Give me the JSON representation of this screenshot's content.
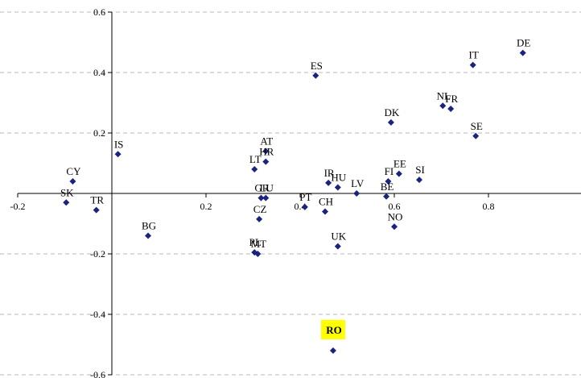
{
  "chart_data": {
    "type": "scatter",
    "title": "",
    "xlabel": "",
    "ylabel": "",
    "xlim": [
      -0.2,
      1.0
    ],
    "ylim": [
      -0.6,
      0.6
    ],
    "x_ticks": [
      "-0.2",
      "0.2",
      "0.4",
      "0.6",
      "0.8"
    ],
    "y_ticks": [
      "-0.6",
      "-0.4",
      "-0.2",
      "0.2",
      "0.4",
      "0.6"
    ],
    "grid": "horizontal dashed",
    "marker_color": "#1a237e",
    "highlight_color": "#ffff00",
    "points": [
      {
        "label": "DE",
        "x": 0.873,
        "y": 0.465
      },
      {
        "label": "IT",
        "x": 0.767,
        "y": 0.425
      },
      {
        "label": "ES",
        "x": 0.433,
        "y": 0.39
      },
      {
        "label": "NL",
        "x": 0.703,
        "y": 0.29
      },
      {
        "label": "FR",
        "x": 0.72,
        "y": 0.28
      },
      {
        "label": "DK",
        "x": 0.593,
        "y": 0.235
      },
      {
        "label": "SE",
        "x": 0.773,
        "y": 0.19
      },
      {
        "label": "IS",
        "x": 0.013,
        "y": 0.13
      },
      {
        "label": "AT",
        "x": 0.327,
        "y": 0.14
      },
      {
        "label": "HR",
        "x": 0.327,
        "y": 0.105
      },
      {
        "label": "LT",
        "x": 0.303,
        "y": 0.08
      },
      {
        "label": "EE",
        "x": 0.61,
        "y": 0.065
      },
      {
        "label": "SI",
        "x": 0.653,
        "y": 0.045
      },
      {
        "label": "FI",
        "x": 0.587,
        "y": 0.04
      },
      {
        "label": "CY",
        "x": -0.083,
        "y": 0.04
      },
      {
        "label": "IR",
        "x": 0.46,
        "y": 0.035
      },
      {
        "label": "HU",
        "x": 0.48,
        "y": 0.02
      },
      {
        "label": "LV",
        "x": 0.52,
        "y": 0.0
      },
      {
        "label": "BE",
        "x": 0.583,
        "y": -0.01
      },
      {
        "label": "GR",
        "x": 0.317,
        "y": -0.015
      },
      {
        "label": "LU",
        "x": 0.327,
        "y": -0.015
      },
      {
        "label": "SK",
        "x": -0.097,
        "y": -0.03
      },
      {
        "label": "PT",
        "x": 0.41,
        "y": -0.045
      },
      {
        "label": "TR",
        "x": -0.033,
        "y": -0.055
      },
      {
        "label": "CH",
        "x": 0.453,
        "y": -0.06
      },
      {
        "label": "CZ",
        "x": 0.313,
        "y": -0.085
      },
      {
        "label": "NO",
        "x": 0.6,
        "y": -0.11
      },
      {
        "label": "BG",
        "x": 0.077,
        "y": -0.14
      },
      {
        "label": "UK",
        "x": 0.48,
        "y": -0.175
      },
      {
        "label": "PL",
        "x": 0.303,
        "y": -0.195
      },
      {
        "label": "MT",
        "x": 0.31,
        "y": -0.2
      },
      {
        "label": "RO",
        "x": 0.47,
        "y": -0.52,
        "highlight": true
      }
    ]
  }
}
